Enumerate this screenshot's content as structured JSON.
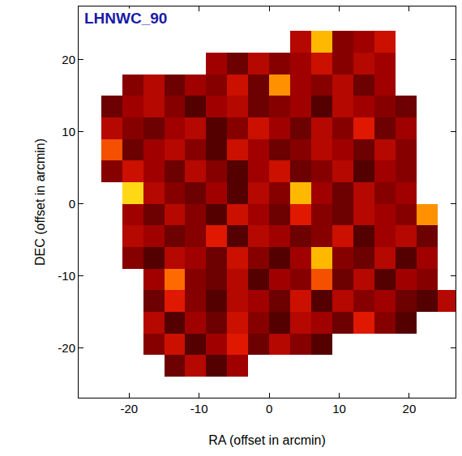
{
  "chart_data": {
    "type": "heatmap",
    "title": "LHNWC_90",
    "x_label": "RA (offset in arcmin)",
    "y_label": "DEC (offset in arcmin)",
    "x": [
      -25.5,
      -22.5,
      -19.5,
      -16.5,
      -13.5,
      -10.5,
      -7.5,
      -4.5,
      -1.5,
      1.5,
      4.5,
      7.5,
      10.5,
      13.5,
      16.5,
      19.5,
      22.5,
      25.5
    ],
    "y": [
      -25.5,
      -22.5,
      -19.5,
      -16.5,
      -13.5,
      -10.5,
      -7.5,
      -4.5,
      -1.5,
      1.5,
      4.5,
      7.5,
      10.5,
      13.5,
      16.5,
      19.5,
      22.5,
      25.5
    ],
    "z": [
      [
        null,
        null,
        null,
        null,
        null,
        null,
        null,
        null,
        null,
        null,
        null,
        null,
        null,
        null,
        null,
        null,
        null,
        null
      ],
      [
        null,
        null,
        null,
        null,
        0.35,
        0.5,
        0.3,
        0.45,
        null,
        null,
        null,
        null,
        null,
        null,
        null,
        null,
        null,
        null
      ],
      [
        null,
        null,
        null,
        0.4,
        0.55,
        0.3,
        0.45,
        0.6,
        0.35,
        0.5,
        0.4,
        0.3,
        null,
        null,
        null,
        null,
        null,
        null
      ],
      [
        null,
        null,
        null,
        0.5,
        0.3,
        0.45,
        0.35,
        0.55,
        0.4,
        0.3,
        0.5,
        0.45,
        0.35,
        0.6,
        0.4,
        0.3,
        null,
        null
      ],
      [
        null,
        null,
        null,
        0.35,
        0.6,
        0.4,
        0.3,
        0.5,
        0.45,
        0.35,
        0.55,
        0.3,
        0.5,
        0.4,
        0.45,
        0.35,
        0.3,
        0.5
      ],
      [
        null,
        null,
        null,
        0.45,
        0.75,
        0.4,
        0.35,
        0.5,
        0.3,
        0.45,
        0.4,
        0.7,
        0.35,
        0.5,
        0.3,
        0.45,
        0.4,
        null
      ],
      [
        null,
        null,
        0.4,
        0.3,
        0.5,
        0.45,
        0.35,
        0.55,
        0.4,
        0.3,
        0.45,
        0.85,
        0.4,
        0.35,
        0.5,
        0.3,
        0.45,
        null
      ],
      [
        null,
        null,
        0.5,
        0.45,
        0.35,
        0.4,
        0.6,
        0.3,
        0.5,
        0.45,
        0.35,
        0.4,
        0.55,
        0.3,
        0.45,
        0.5,
        0.35,
        null
      ],
      [
        null,
        null,
        0.45,
        0.35,
        0.5,
        0.4,
        0.3,
        0.55,
        0.45,
        0.35,
        0.6,
        0.4,
        0.35,
        0.5,
        0.45,
        0.4,
        0.8,
        null
      ],
      [
        null,
        null,
        0.9,
        0.5,
        0.4,
        0.35,
        0.45,
        0.3,
        0.5,
        0.4,
        0.85,
        0.45,
        0.35,
        0.5,
        0.4,
        0.45,
        null,
        null
      ],
      [
        null,
        0.4,
        0.55,
        0.45,
        0.35,
        0.5,
        0.4,
        0.3,
        0.45,
        0.55,
        0.35,
        0.4,
        0.5,
        0.3,
        0.45,
        0.4,
        null,
        null
      ],
      [
        null,
        0.7,
        0.35,
        0.45,
        0.5,
        0.4,
        0.3,
        0.55,
        0.45,
        0.35,
        0.4,
        0.5,
        0.45,
        0.35,
        0.5,
        0.4,
        null,
        null
      ],
      [
        null,
        0.5,
        0.4,
        0.35,
        0.45,
        0.5,
        0.3,
        0.4,
        0.55,
        0.45,
        0.35,
        0.5,
        0.4,
        0.6,
        0.35,
        0.45,
        null,
        null
      ],
      [
        null,
        0.35,
        0.45,
        0.5,
        0.4,
        0.3,
        0.45,
        0.5,
        0.35,
        0.4,
        0.45,
        0.3,
        0.5,
        0.45,
        0.4,
        0.35,
        null,
        null
      ],
      [
        null,
        null,
        0.4,
        0.5,
        0.35,
        0.45,
        0.4,
        0.55,
        0.35,
        0.8,
        0.45,
        0.4,
        0.5,
        0.35,
        0.45,
        null,
        null,
        null
      ],
      [
        null,
        null,
        null,
        null,
        null,
        null,
        0.45,
        0.35,
        0.5,
        0.4,
        0.45,
        0.55,
        0.4,
        0.5,
        0.45,
        null,
        null,
        null
      ],
      [
        null,
        null,
        null,
        null,
        null,
        null,
        null,
        null,
        null,
        null,
        0.5,
        0.85,
        0.4,
        0.45,
        0.55,
        null,
        null,
        null
      ],
      [
        null,
        null,
        null,
        null,
        null,
        null,
        null,
        null,
        null,
        null,
        null,
        null,
        null,
        null,
        null,
        null,
        null,
        null
      ]
    ],
    "color_range": [
      0,
      1
    ],
    "xlim": [
      -27.2,
      26.6
    ],
    "ylim": [
      -26.9,
      27.4
    ],
    "xticks": [
      -20,
      -10,
      0,
      10,
      20
    ],
    "yticks": [
      -20,
      -10,
      0,
      10,
      20
    ],
    "grid": false
  }
}
